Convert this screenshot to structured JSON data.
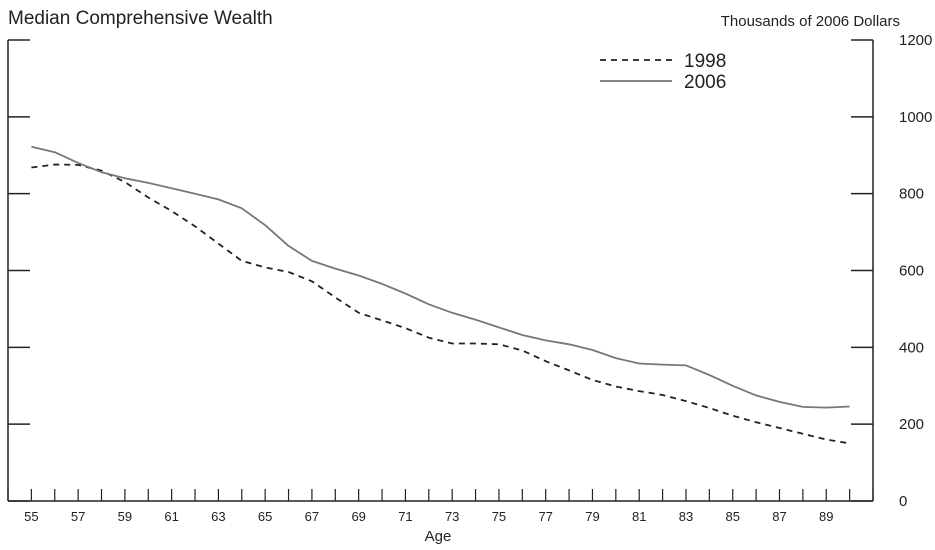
{
  "chart_data": {
    "type": "line",
    "title": "Median Comprehensive Wealth",
    "unit_label": "Thousands of 2006 Dollars",
    "xlabel": "Age",
    "ylabel": "",
    "xlim": [
      54,
      91
    ],
    "ylim": [
      0,
      1200
    ],
    "y_ticks": [
      0,
      200,
      400,
      600,
      800,
      1000,
      1200
    ],
    "x_tick_labels": [
      55,
      57,
      59,
      61,
      63,
      65,
      67,
      69,
      71,
      73,
      75,
      77,
      79,
      81,
      83,
      85,
      87,
      89
    ],
    "y_axis_side": "right",
    "grid": false,
    "legend_position": "top-right",
    "x": [
      55,
      56,
      57,
      58,
      59,
      60,
      61,
      62,
      63,
      64,
      65,
      66,
      67,
      68,
      69,
      70,
      71,
      72,
      73,
      74,
      75,
      76,
      77,
      78,
      79,
      80,
      81,
      82,
      83,
      84,
      85,
      86,
      87,
      88,
      89,
      90
    ],
    "series": [
      {
        "name": "1998",
        "style": "dashed",
        "color": "#222222",
        "values": [
          868,
          876,
          875,
          860,
          830,
          790,
          755,
          715,
          670,
          625,
          608,
          596,
          572,
          530,
          490,
          470,
          450,
          425,
          410,
          410,
          408,
          392,
          364,
          340,
          315,
          298,
          286,
          276,
          260,
          242,
          222,
          205,
          190,
          175,
          160,
          150
        ]
      },
      {
        "name": "2006",
        "style": "solid",
        "color": "#777777",
        "values": [
          922,
          908,
          880,
          856,
          840,
          828,
          814,
          800,
          785,
          762,
          718,
          664,
          625,
          605,
          587,
          565,
          540,
          512,
          490,
          472,
          452,
          432,
          418,
          408,
          393,
          372,
          358,
          355,
          353,
          328,
          300,
          275,
          258,
          245,
          243,
          246
        ]
      }
    ]
  }
}
